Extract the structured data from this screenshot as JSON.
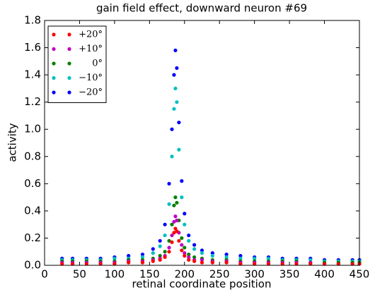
{
  "chart_data": {
    "type": "scatter",
    "title": "gain field effect, downward neuron #69",
    "x_label": "retinal coordinate position",
    "y_label": "activity",
    "x": [
      25,
      40,
      60,
      80,
      100,
      120,
      140,
      155,
      165,
      172,
      178,
      182,
      185,
      187,
      189,
      192,
      196,
      200,
      206,
      214,
      225,
      240,
      260,
      280,
      300,
      320,
      340,
      360,
      380,
      400,
      420,
      440,
      450
    ],
    "series": [
      {
        "name": "+20°",
        "color": "#ff0000",
        "values": [
          0.01,
          0.01,
          0.01,
          0.01,
          0.01,
          0.02,
          0.02,
          0.03,
          0.04,
          0.06,
          0.1,
          0.17,
          0.24,
          0.27,
          0.25,
          0.18,
          0.11,
          0.07,
          0.04,
          0.03,
          0.02,
          0.02,
          0.02,
          0.01,
          0.01,
          0.01,
          0.01,
          0.01,
          0.01,
          0.01,
          0.01,
          0.01,
          0.01
        ]
      },
      {
        "name": "+10°",
        "color": "#bf00bf",
        "values": [
          0.02,
          0.02,
          0.02,
          0.02,
          0.02,
          0.03,
          0.03,
          0.04,
          0.05,
          0.07,
          0.13,
          0.22,
          0.32,
          0.36,
          0.33,
          0.24,
          0.15,
          0.09,
          0.06,
          0.04,
          0.04,
          0.03,
          0.03,
          0.02,
          0.02,
          0.02,
          0.02,
          0.02,
          0.02,
          0.01,
          0.01,
          0.01,
          0.01
        ]
      },
      {
        "name": "0°",
        "color": "#008000",
        "values": [
          0.03,
          0.03,
          0.03,
          0.03,
          0.03,
          0.04,
          0.04,
          0.05,
          0.07,
          0.1,
          0.18,
          0.3,
          0.44,
          0.5,
          0.46,
          0.33,
          0.2,
          0.13,
          0.08,
          0.06,
          0.05,
          0.04,
          0.04,
          0.03,
          0.03,
          0.03,
          0.03,
          0.03,
          0.02,
          0.02,
          0.02,
          0.02,
          0.02
        ]
      },
      {
        "name": "−10°",
        "color": "#00bfbf",
        "values": [
          0.04,
          0.04,
          0.04,
          0.04,
          0.05,
          0.05,
          0.06,
          0.09,
          0.14,
          0.22,
          0.45,
          0.8,
          1.15,
          1.3,
          1.2,
          0.85,
          0.5,
          0.3,
          0.18,
          0.12,
          0.09,
          0.07,
          0.06,
          0.05,
          0.05,
          0.05,
          0.04,
          0.04,
          0.04,
          0.03,
          0.03,
          0.03,
          0.03
        ]
      },
      {
        "name": "−20°",
        "color": "#0000ff",
        "values": [
          0.05,
          0.05,
          0.05,
          0.05,
          0.06,
          0.07,
          0.08,
          0.12,
          0.18,
          0.3,
          0.6,
          1.0,
          1.4,
          1.58,
          1.45,
          1.05,
          0.62,
          0.38,
          0.22,
          0.15,
          0.11,
          0.09,
          0.08,
          0.07,
          0.06,
          0.06,
          0.05,
          0.05,
          0.05,
          0.04,
          0.04,
          0.04,
          0.04
        ]
      }
    ],
    "xlim": [
      0,
      450
    ],
    "xticks": [
      0,
      50,
      100,
      150,
      200,
      250,
      300,
      350,
      400,
      450
    ],
    "ylim": [
      0,
      1.8
    ],
    "yticks": [
      {
        "value": 0,
        "label": "0.0"
      },
      0.2,
      0.4,
      0.6,
      0.8,
      {
        "value": 1,
        "label": "1.0"
      },
      1.2,
      1.4,
      1.6,
      1.8
    ],
    "grid": false,
    "legend": "upper left"
  }
}
